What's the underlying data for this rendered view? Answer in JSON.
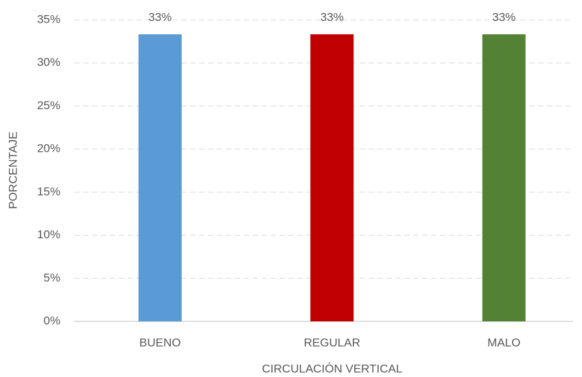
{
  "chart_data": {
    "type": "bar",
    "x_label": "CIRCULACIÓN VERTICAL",
    "y_label": "PORCENTAJE",
    "categories": [
      "BUENO",
      "REGULAR",
      "MALO"
    ],
    "values": [
      33.33,
      33.33,
      33.33
    ],
    "value_labels": [
      "33%",
      "33%",
      "33%"
    ],
    "colors": [
      "#5b9bd5",
      "#c00000",
      "#548235"
    ],
    "ylim": [
      0,
      35
    ],
    "yticks": [
      {
        "value": 0,
        "label": "0%"
      },
      {
        "value": 5,
        "label": "5%"
      },
      {
        "value": 10,
        "label": "10%"
      },
      {
        "value": 15,
        "label": "15%"
      },
      {
        "value": 20,
        "label": "20%"
      },
      {
        "value": 25,
        "label": "25%"
      },
      {
        "value": 30,
        "label": "30%"
      },
      {
        "value": 35,
        "label": "35%"
      }
    ],
    "grid": true
  }
}
